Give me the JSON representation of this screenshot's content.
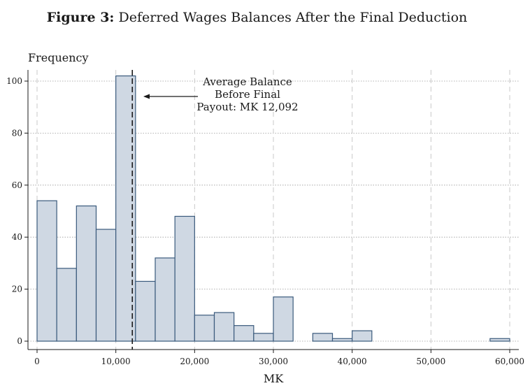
{
  "figure": {
    "number_label": "Figure 3:",
    "title": "Deferred Wages Balances After the Final Deduction"
  },
  "chart_data": {
    "type": "bar",
    "bin_width": 2500,
    "bins": [
      {
        "start": 0,
        "count": 54
      },
      {
        "start": 2500,
        "count": 28
      },
      {
        "start": 5000,
        "count": 52
      },
      {
        "start": 7500,
        "count": 43
      },
      {
        "start": 10000,
        "count": 102
      },
      {
        "start": 12500,
        "count": 23
      },
      {
        "start": 15000,
        "count": 32
      },
      {
        "start": 17500,
        "count": 48
      },
      {
        "start": 20000,
        "count": 10
      },
      {
        "start": 22500,
        "count": 11
      },
      {
        "start": 25000,
        "count": 6
      },
      {
        "start": 27500,
        "count": 3
      },
      {
        "start": 30000,
        "count": 17
      },
      {
        "start": 35000,
        "count": 3
      },
      {
        "start": 37500,
        "count": 1
      },
      {
        "start": 40000,
        "count": 4
      },
      {
        "start": 57500,
        "count": 1
      }
    ],
    "xlabel": "MK",
    "ylabel": "Frequency",
    "xlim": [
      0,
      60000
    ],
    "ylim": [
      0,
      105
    ],
    "x_ticks": [
      0,
      10000,
      20000,
      30000,
      40000,
      50000,
      60000
    ],
    "x_tick_labels": [
      "0",
      "10,000",
      "20,000",
      "30,000",
      "40,000",
      "50,000",
      "60,000"
    ],
    "y_ticks": [
      0,
      20,
      40,
      60,
      80,
      100
    ],
    "y_tick_labels": [
      "0",
      "20",
      "40",
      "60",
      "80",
      "100"
    ],
    "reference_line": {
      "x": 12092,
      "style": "dashed"
    },
    "annotation": {
      "lines": [
        "Average Balance",
        "Before Final",
        "Payout: MK 12,092"
      ]
    },
    "bar_fill": "#cfd8e3",
    "bar_stroke": "#3a5a7c",
    "grid": true
  }
}
